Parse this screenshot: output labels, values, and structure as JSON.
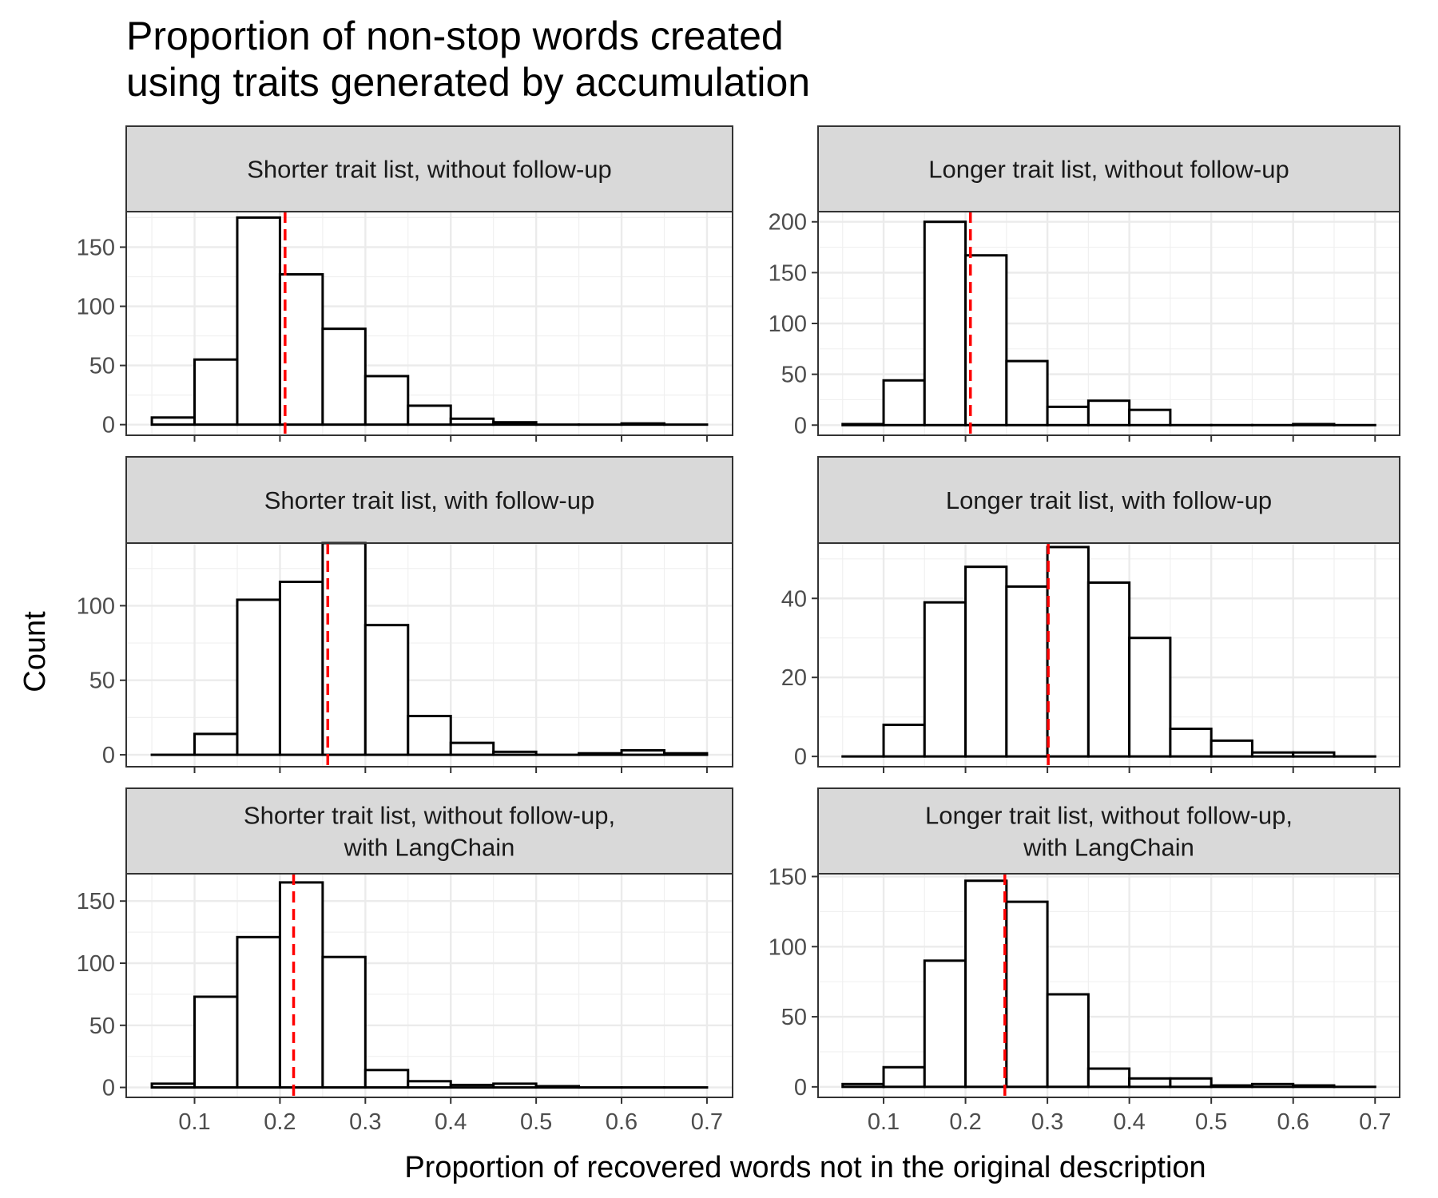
{
  "chart_data": {
    "type": "bar",
    "title_lines": [
      "Proportion of non-stop words created",
      "using traits generated by accumulation"
    ],
    "xlabel": "Proportion of recovered words not in the original description",
    "ylabel": "Count",
    "x_ticks": [
      "0.1",
      "0.2",
      "0.3",
      "0.4",
      "0.5",
      "0.6",
      "0.7"
    ],
    "xlim": [
      0.02,
      0.73
    ],
    "bin_width": 0.05,
    "bin_starts": [
      0.05,
      0.1,
      0.15,
      0.2,
      0.25,
      0.3,
      0.35,
      0.4,
      0.45,
      0.5,
      0.55,
      0.6,
      0.65
    ],
    "bar_fill": "#ffffff",
    "bar_stroke": "#000000",
    "reference_line_color": "#ff0000",
    "reference_line_style": "dashed",
    "strip_fill": "#d9d9d9",
    "grid": true,
    "panels": [
      {
        "strip_lines": [
          "Shorter trait list, without follow-up"
        ],
        "y_ticks": [
          0,
          50,
          100,
          150
        ],
        "ylim": [
          -9,
          180
        ],
        "values": [
          6,
          55,
          175,
          127,
          81,
          41,
          16,
          5,
          2,
          0,
          0,
          1,
          0
        ],
        "reference_x": 0.206
      },
      {
        "strip_lines": [
          "Longer trait list, without follow-up"
        ],
        "y_ticks": [
          0,
          50,
          100,
          150,
          200
        ],
        "ylim": [
          -10,
          210
        ],
        "values": [
          1,
          44,
          200,
          167,
          63,
          18,
          24,
          15,
          0,
          0,
          0,
          1,
          0
        ],
        "reference_x": 0.206
      },
      {
        "strip_lines": [
          "Shorter trait list, with follow-up"
        ],
        "y_ticks": [
          0,
          50,
          100
        ],
        "ylim": [
          -8,
          142
        ],
        "values": [
          0,
          14,
          104,
          116,
          142,
          87,
          26,
          8,
          2,
          0,
          1,
          3,
          1
        ],
        "reference_x": 0.256
      },
      {
        "strip_lines": [
          "Longer trait list, with follow-up"
        ],
        "y_ticks": [
          0,
          20,
          40
        ],
        "ylim": [
          -2.6,
          54
        ],
        "values": [
          0,
          8,
          39,
          48,
          43,
          53,
          44,
          30,
          7,
          4,
          1,
          1,
          0
        ],
        "reference_x": 0.301
      },
      {
        "strip_lines": [
          "Shorter trait list, without follow-up,",
          "with LangChain"
        ],
        "y_ticks": [
          0,
          50,
          100,
          150
        ],
        "ylim": [
          -8,
          172
        ],
        "values": [
          3,
          73,
          121,
          165,
          105,
          14,
          5,
          2,
          3,
          1,
          0,
          0,
          0
        ],
        "reference_x": 0.216
      },
      {
        "strip_lines": [
          "Longer trait list, without follow-up,",
          "with LangChain"
        ],
        "y_ticks": [
          0,
          50,
          100,
          150
        ],
        "ylim": [
          -7.5,
          152
        ],
        "values": [
          2,
          14,
          90,
          147,
          132,
          66,
          13,
          6,
          6,
          1,
          2,
          1,
          0
        ],
        "reference_x": 0.248
      }
    ]
  }
}
